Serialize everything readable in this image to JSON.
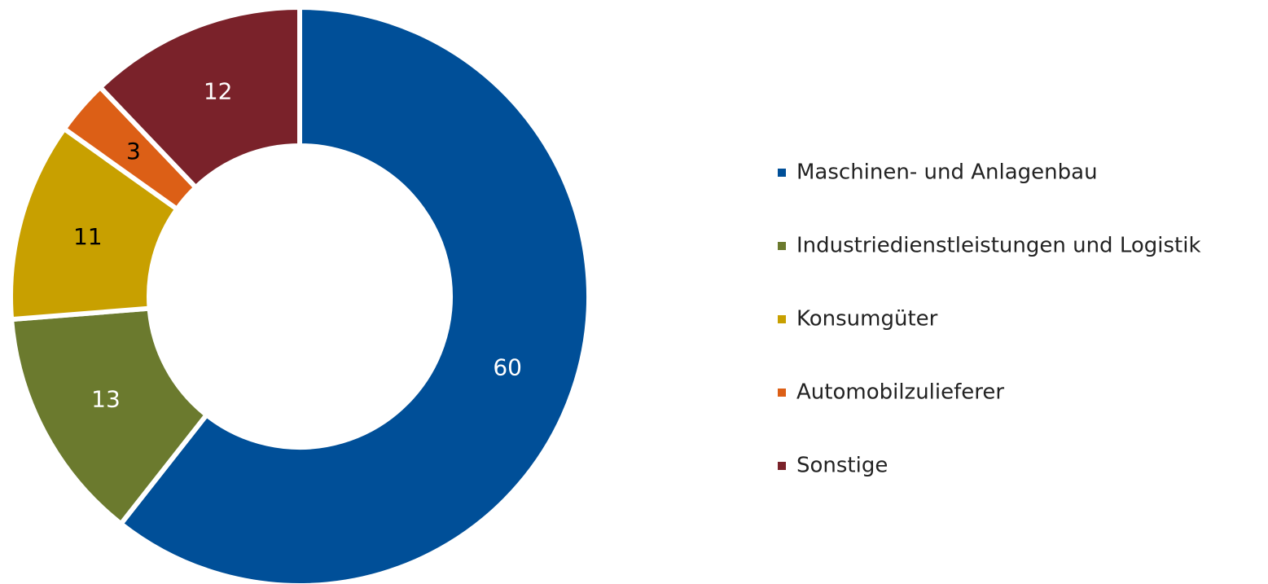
{
  "chart_data": {
    "type": "donut",
    "categories": [
      "Maschinen- und Anlagenbau",
      "Industriedienstleistungen und Logistik",
      "Konsumgüter",
      "Automobilzulieferer",
      "Sonstige"
    ],
    "values": [
      60,
      13,
      11,
      3,
      12
    ],
    "colors": [
      "#004f98",
      "#6b7a2e",
      "#c8a000",
      "#dc5f16",
      "#7a222a"
    ],
    "label_colors": [
      "#ffffff",
      "#ffffff",
      "#000000",
      "#000000",
      "#ffffff"
    ],
    "legend": "right"
  }
}
